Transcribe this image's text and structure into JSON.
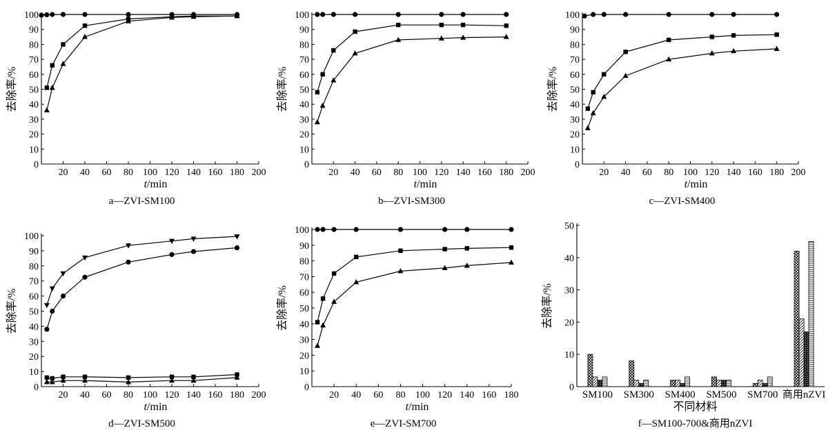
{
  "chart_data": [
    {
      "type": "line",
      "caption": "a—ZVI-SM100",
      "xlabel_italic": "t",
      "xlabel_unit": "/min",
      "ylabel": "去除率/%",
      "xlim": [
        0,
        200
      ],
      "ylim": [
        0,
        100
      ],
      "xticks": [
        20,
        40,
        60,
        80,
        100,
        120,
        140,
        160,
        180,
        200
      ],
      "yticks": [
        0,
        10,
        20,
        30,
        40,
        50,
        60,
        70,
        80,
        90,
        100
      ],
      "grid": false,
      "series": [
        {
          "marker": "circle",
          "x": [
            0,
            5,
            10,
            20,
            40,
            80,
            120,
            140,
            180
          ],
          "y": [
            99.5,
            99.8,
            100,
            100,
            100,
            100,
            100,
            100,
            100
          ]
        },
        {
          "marker": "square",
          "x": [
            5,
            10,
            20,
            40,
            80,
            120,
            140,
            180
          ],
          "y": [
            51,
            66,
            80,
            92.5,
            97,
            98.5,
            99,
            99
          ]
        },
        {
          "marker": "triangle",
          "x": [
            5,
            10,
            20,
            40,
            80,
            120,
            140,
            180
          ],
          "y": [
            36,
            51,
            67,
            85,
            95.5,
            98,
            98.5,
            99
          ]
        }
      ]
    },
    {
      "type": "line",
      "caption": "b—ZVI-SM300",
      "xlabel_italic": "t",
      "xlabel_unit": "/min",
      "ylabel": "去除率/%",
      "xlim": [
        0,
        200
      ],
      "ylim": [
        0,
        100
      ],
      "xticks": [
        20,
        40,
        60,
        80,
        100,
        120,
        140,
        160,
        180,
        200
      ],
      "yticks": [
        0,
        10,
        20,
        30,
        40,
        50,
        60,
        70,
        80,
        90,
        100
      ],
      "grid": false,
      "series": [
        {
          "marker": "circle",
          "x": [
            5,
            10,
            20,
            40,
            80,
            120,
            140,
            180
          ],
          "y": [
            100,
            100,
            100,
            100,
            100,
            100,
            100,
            100
          ]
        },
        {
          "marker": "square",
          "x": [
            5,
            10,
            20,
            40,
            80,
            120,
            140,
            180
          ],
          "y": [
            48,
            60,
            76,
            88.5,
            93,
            93,
            93,
            92.5
          ]
        },
        {
          "marker": "triangle",
          "x": [
            5,
            10,
            20,
            40,
            80,
            120,
            140,
            180
          ],
          "y": [
            28,
            39,
            56,
            74,
            83,
            84,
            84.5,
            85
          ]
        }
      ]
    },
    {
      "type": "line",
      "caption": "c—ZVI-SM400",
      "xlabel_italic": "t",
      "xlabel_unit": "/min",
      "ylabel": "去除率/%",
      "xlim": [
        0,
        200
      ],
      "ylim": [
        0,
        100
      ],
      "xticks": [
        20,
        40,
        60,
        80,
        100,
        120,
        140,
        160,
        180,
        200
      ],
      "yticks": [
        0,
        10,
        20,
        30,
        40,
        50,
        60,
        70,
        80,
        90,
        100
      ],
      "grid": false,
      "series": [
        {
          "marker": "circle",
          "x": [
            2,
            10,
            20,
            40,
            80,
            120,
            140,
            180
          ],
          "y": [
            99,
            100,
            100,
            100,
            100,
            100,
            100,
            100
          ]
        },
        {
          "marker": "square",
          "x": [
            5,
            10,
            20,
            40,
            80,
            120,
            140,
            180
          ],
          "y": [
            37,
            48,
            60,
            75,
            83,
            85,
            86,
            86.5
          ]
        },
        {
          "marker": "triangle",
          "x": [
            5,
            10,
            20,
            40,
            80,
            120,
            140,
            180
          ],
          "y": [
            24,
            34,
            45,
            59,
            70,
            74,
            75.5,
            77
          ]
        }
      ]
    },
    {
      "type": "line",
      "caption": "d—ZVI-SM500",
      "xlabel_italic": "t",
      "xlabel_unit": "/min",
      "ylabel": "去除率/%",
      "xlim": [
        0,
        200
      ],
      "ylim": [
        0,
        100
      ],
      "xticks": [
        20,
        40,
        60,
        80,
        100,
        120,
        140,
        160,
        180,
        200
      ],
      "yticks": [
        0,
        10,
        20,
        30,
        40,
        50,
        60,
        70,
        80,
        90,
        100
      ],
      "grid": false,
      "series": [
        {
          "marker": "triangle-down",
          "x": [
            5,
            10,
            20,
            40,
            80,
            120,
            140,
            180
          ],
          "y": [
            54,
            65,
            75,
            85.5,
            93.5,
            96.5,
            98,
            99.5
          ]
        },
        {
          "marker": "circle",
          "x": [
            5,
            10,
            20,
            40,
            80,
            120,
            140,
            180
          ],
          "y": [
            38,
            50,
            60,
            72.5,
            82.5,
            87.5,
            89.5,
            92
          ]
        },
        {
          "marker": "square",
          "x": [
            5,
            10,
            20,
            40,
            80,
            120,
            140,
            180
          ],
          "y": [
            6,
            5.5,
            6.5,
            6.5,
            6,
            6.5,
            6.5,
            8
          ]
        },
        {
          "marker": "triangle",
          "x": [
            5,
            10,
            20,
            40,
            80,
            120,
            140,
            180
          ],
          "y": [
            3,
            3,
            4,
            4,
            3,
            4,
            4,
            6
          ]
        }
      ]
    },
    {
      "type": "line",
      "caption": "e—ZVI-SM700",
      "xlabel_italic": "t",
      "xlabel_unit": "/min",
      "ylabel": "去除率/%",
      "xlim": [
        0,
        180
      ],
      "ylim": [
        0,
        100
      ],
      "xticks": [
        20,
        40,
        60,
        80,
        100,
        120,
        140,
        160,
        180
      ],
      "yticks": [
        0,
        10,
        20,
        30,
        40,
        50,
        60,
        70,
        80,
        90,
        100
      ],
      "grid": false,
      "series": [
        {
          "marker": "circle",
          "x": [
            5,
            10,
            20,
            40,
            80,
            120,
            140,
            180
          ],
          "y": [
            100,
            100,
            100,
            100,
            100,
            100,
            100,
            100
          ]
        },
        {
          "marker": "square",
          "x": [
            5,
            10,
            20,
            40,
            80,
            120,
            140,
            180
          ],
          "y": [
            41,
            56,
            72,
            82.5,
            86.5,
            87.5,
            88,
            88.5
          ]
        },
        {
          "marker": "triangle",
          "x": [
            5,
            10,
            20,
            40,
            80,
            120,
            140,
            180
          ],
          "y": [
            26,
            39,
            54,
            66.5,
            73.5,
            75.5,
            77,
            79
          ]
        }
      ]
    },
    {
      "type": "bar",
      "caption": "f—SM100-700&商用nZVI",
      "xlabel": "不同材料",
      "ylabel": "去除率/%",
      "ylim": [
        0,
        50
      ],
      "yticks": [
        0,
        10,
        20,
        30,
        40,
        50
      ],
      "grid": false,
      "categories": [
        "SM100",
        "SM300",
        "SM400",
        "SM500",
        "SM700",
        "商用nZVI"
      ],
      "series": [
        {
          "pattern": "crosshatch",
          "values": [
            10,
            8,
            2,
            3,
            1,
            42
          ]
        },
        {
          "pattern": "diagonal",
          "values": [
            3,
            2,
            2,
            2,
            2,
            21
          ]
        },
        {
          "pattern": "dense",
          "values": [
            2,
            1,
            1,
            2,
            1,
            17
          ]
        },
        {
          "pattern": "horizontal",
          "values": [
            3,
            2,
            3,
            2,
            3,
            45
          ]
        }
      ]
    }
  ]
}
